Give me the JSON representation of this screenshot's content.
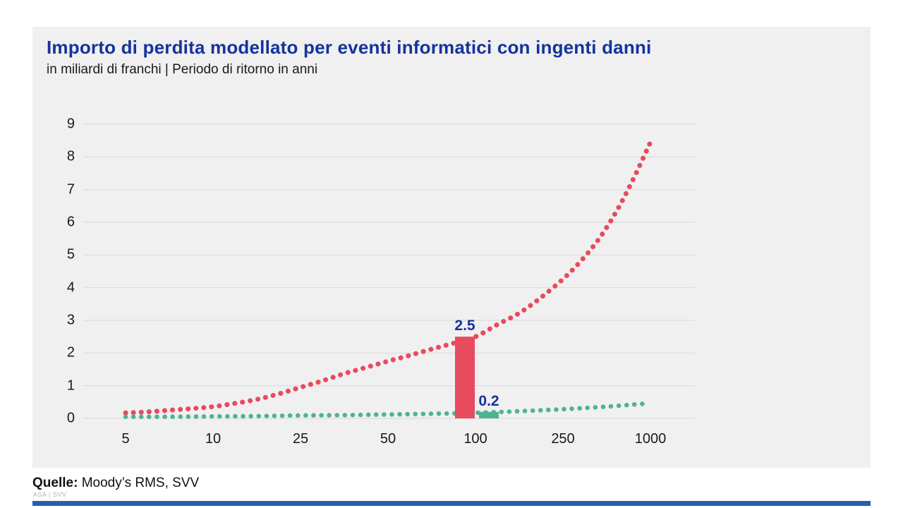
{
  "header": {
    "title": "Importo di perdita modellato per eventi informatici con ingenti danni",
    "subtitle": "in miliardi di franchi | Periodo di ritorno in anni"
  },
  "footer": {
    "source_label": "Quelle:",
    "source_text": "Moody’s RMS, SVV",
    "logo_text": "ASA | SVV"
  },
  "colors": {
    "accent_blue": "#15339d",
    "series_red": "#e84a5e",
    "series_green": "#4eb391",
    "panel_gray": "#f0f0f0",
    "gridline": "#d9d9d9",
    "bottom_bar_blue": "#2b5cad"
  },
  "chart_data": {
    "type": "combo (dotted line curves + bars)",
    "title": "Importo di perdita modellato per eventi informatici con ingenti danni",
    "subtitle": "in miliardi di franchi | Periodo di ritorno in anni",
    "xlabel": "Periodo di ritorno in anni",
    "ylabel": "in miliardi di franchi",
    "grid": true,
    "legend": "none",
    "ylim": [
      0,
      9
    ],
    "y_ticks": [
      "0",
      "1",
      "2",
      "3",
      "4",
      "5",
      "6",
      "7",
      "8",
      "9"
    ],
    "x_ticks": [
      "5",
      "10",
      "25",
      "50",
      "100",
      "250",
      "1000"
    ],
    "series": [
      {
        "name": "curva-perdita-alta",
        "style": "dotted",
        "color": "#e84a5e",
        "dot_size": 7,
        "points_tickidx_value": [
          [
            0,
            0.17
          ],
          [
            0.25,
            0.2
          ],
          [
            0.5,
            0.25
          ],
          [
            0.75,
            0.3
          ],
          [
            1,
            0.36
          ],
          [
            1.25,
            0.46
          ],
          [
            1.5,
            0.58
          ],
          [
            1.75,
            0.75
          ],
          [
            2,
            0.95
          ],
          [
            2.25,
            1.15
          ],
          [
            2.5,
            1.37
          ],
          [
            2.75,
            1.56
          ],
          [
            3,
            1.75
          ],
          [
            3.25,
            1.93
          ],
          [
            3.5,
            2.12
          ],
          [
            3.75,
            2.3
          ],
          [
            4,
            2.5
          ],
          [
            4.25,
            2.87
          ],
          [
            4.5,
            3.22
          ],
          [
            4.75,
            3.7
          ],
          [
            5,
            4.26
          ],
          [
            5.2,
            4.8
          ],
          [
            5.4,
            5.45
          ],
          [
            5.6,
            6.28
          ],
          [
            5.8,
            7.3
          ],
          [
            6,
            8.45
          ]
        ]
      },
      {
        "name": "curva-perdita-bassa",
        "style": "dotted",
        "color": "#4eb391",
        "dot_size": 6.5,
        "points_tickidx_value": [
          [
            0,
            0.05
          ],
          [
            0.5,
            0.05
          ],
          [
            1,
            0.06
          ],
          [
            1.5,
            0.07
          ],
          [
            2,
            0.09
          ],
          [
            2.5,
            0.1
          ],
          [
            3,
            0.12
          ],
          [
            3.5,
            0.14
          ],
          [
            4,
            0.17
          ],
          [
            4.5,
            0.22
          ],
          [
            5,
            0.28
          ],
          [
            5.5,
            0.36
          ],
          [
            5.93,
            0.45
          ]
        ]
      }
    ],
    "bars": [
      {
        "name": "barra-rossa-100-anni",
        "x_tick": "100",
        "value": 2.5,
        "label": "2.5",
        "color": "#e84a5e",
        "side": "left"
      },
      {
        "name": "barra-verde-100-anni",
        "x_tick": "100",
        "value": 0.2,
        "label": "0.2",
        "color": "#4eb391",
        "side": "right"
      }
    ]
  }
}
